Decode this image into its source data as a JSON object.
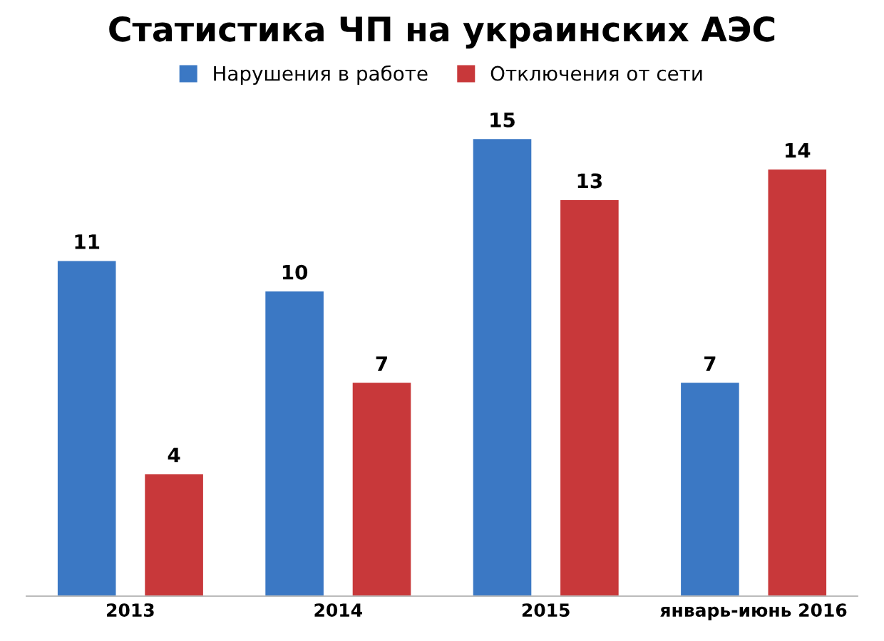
{
  "chart_data": {
    "type": "bar",
    "title": "Статистика ЧП на украинских АЭС",
    "categories": [
      "2013",
      "2014",
      "2015",
      "январь-июнь 2016"
    ],
    "series": [
      {
        "name": "Нарушения в работе",
        "color": "#3b78c4",
        "values": [
          11,
          10,
          15,
          7
        ]
      },
      {
        "name": "Отключения от сети",
        "color": "#c8383a",
        "values": [
          4,
          7,
          13,
          14
        ]
      }
    ],
    "data_labels": true,
    "legend": "top",
    "grid": false,
    "tick_labels": "x"
  }
}
